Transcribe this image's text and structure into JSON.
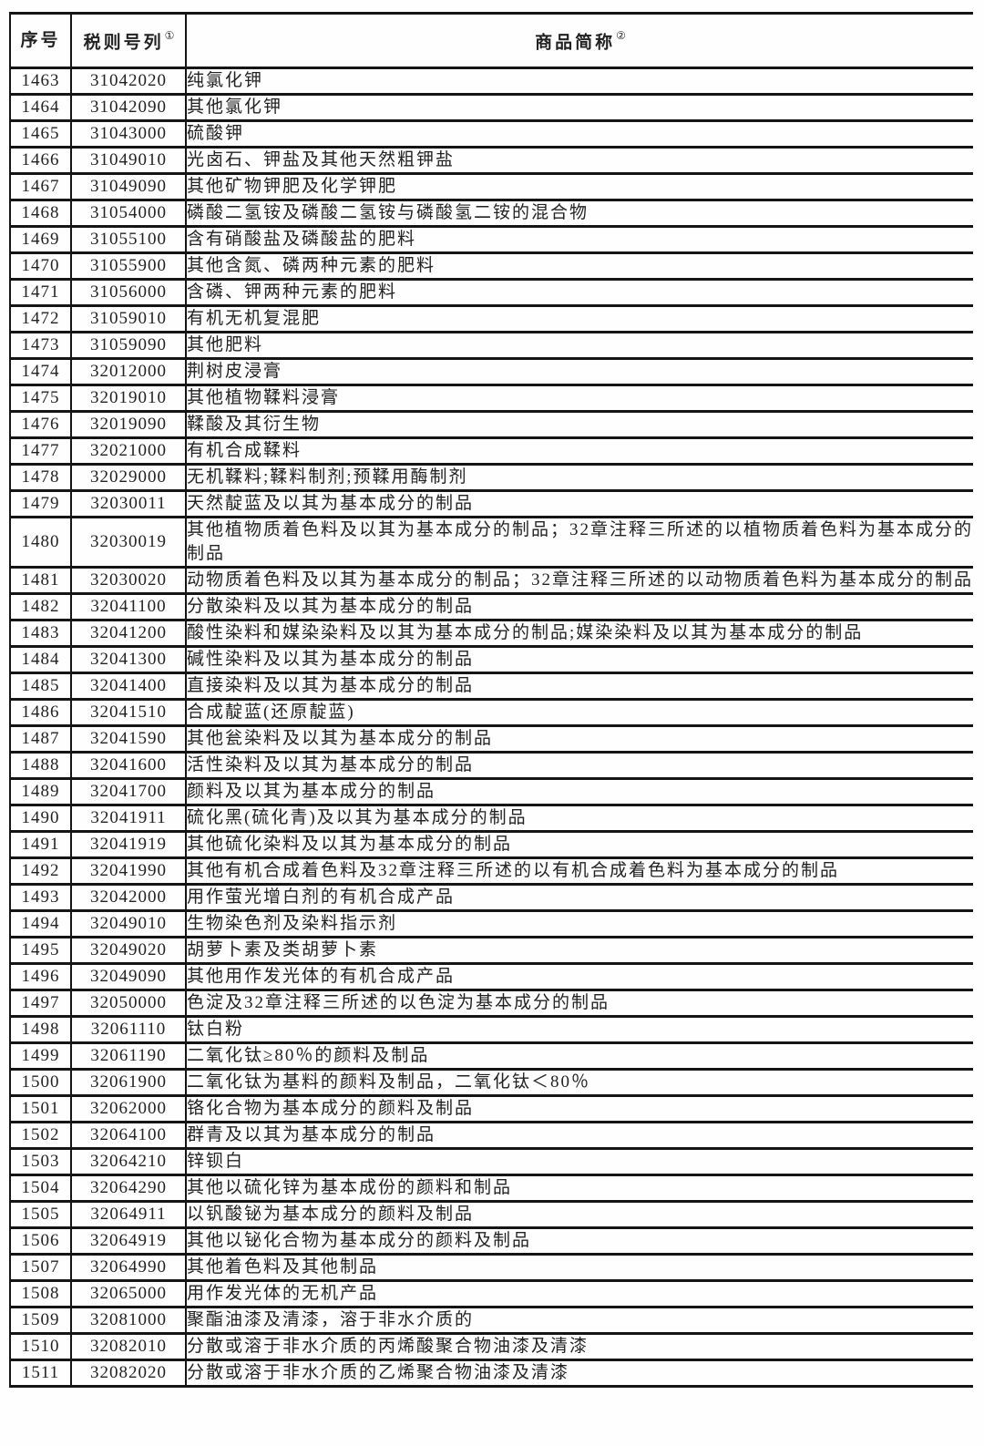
{
  "table": {
    "columns": [
      {
        "label": "序号",
        "sup": ""
      },
      {
        "label": "税则号列",
        "sup": "①"
      },
      {
        "label": "商品简称",
        "sup": "②"
      }
    ],
    "line_color": "#151515",
    "rows": [
      {
        "seq": "1463",
        "code": "31042020",
        "name": "纯氯化钾"
      },
      {
        "seq": "1464",
        "code": "31042090",
        "name": "其他氯化钾"
      },
      {
        "seq": "1465",
        "code": "31043000",
        "name": "硫酸钾"
      },
      {
        "seq": "1466",
        "code": "31049010",
        "name": "光卤石、钾盐及其他天然粗钾盐"
      },
      {
        "seq": "1467",
        "code": "31049090",
        "name": "其他矿物钾肥及化学钾肥"
      },
      {
        "seq": "1468",
        "code": "31054000",
        "name": "磷酸二氢铵及磷酸二氢铵与磷酸氢二铵的混合物"
      },
      {
        "seq": "1469",
        "code": "31055100",
        "name": "含有硝酸盐及磷酸盐的肥料"
      },
      {
        "seq": "1470",
        "code": "31055900",
        "name": "其他含氮、磷两种元素的肥料"
      },
      {
        "seq": "1471",
        "code": "31056000",
        "name": "含磷、钾两种元素的肥料"
      },
      {
        "seq": "1472",
        "code": "31059010",
        "name": "有机无机复混肥"
      },
      {
        "seq": "1473",
        "code": "31059090",
        "name": "其他肥料"
      },
      {
        "seq": "1474",
        "code": "32012000",
        "name": "荆树皮浸膏"
      },
      {
        "seq": "1475",
        "code": "32019010",
        "name": "其他植物鞣料浸膏"
      },
      {
        "seq": "1476",
        "code": "32019090",
        "name": "鞣酸及其衍生物"
      },
      {
        "seq": "1477",
        "code": "32021000",
        "name": "有机合成鞣料"
      },
      {
        "seq": "1478",
        "code": "32029000",
        "name": "无机鞣料;鞣料制剂;预鞣用酶制剂"
      },
      {
        "seq": "1479",
        "code": "32030011",
        "name": "天然靛蓝及以其为基本成分的制品"
      },
      {
        "seq": "1480",
        "code": "32030019",
        "name": "其他植物质着色料及以其为基本成分的制品；32章注释三所述的以植物质着色料为基本成分的制品"
      },
      {
        "seq": "1481",
        "code": "32030020",
        "name": "动物质着色料及以其为基本成分的制品；32章注释三所述的以动物质着色料为基本成分的制品"
      },
      {
        "seq": "1482",
        "code": "32041100",
        "name": "分散染料及以其为基本成分的制品"
      },
      {
        "seq": "1483",
        "code": "32041200",
        "name": "酸性染料和媒染染料及以其为基本成分的制品;媒染染料及以其为基本成分的制品"
      },
      {
        "seq": "1484",
        "code": "32041300",
        "name": "碱性染料及以其为基本成分的制品"
      },
      {
        "seq": "1485",
        "code": "32041400",
        "name": "直接染料及以其为基本成分的制品"
      },
      {
        "seq": "1486",
        "code": "32041510",
        "name": "合成靛蓝(还原靛蓝)"
      },
      {
        "seq": "1487",
        "code": "32041590",
        "name": "其他瓮染料及以其为基本成分的制品"
      },
      {
        "seq": "1488",
        "code": "32041600",
        "name": "活性染料及以其为基本成分的制品"
      },
      {
        "seq": "1489",
        "code": "32041700",
        "name": "颜料及以其为基本成分的制品"
      },
      {
        "seq": "1490",
        "code": "32041911",
        "name": "硫化黑(硫化青)及以其为基本成分的制品"
      },
      {
        "seq": "1491",
        "code": "32041919",
        "name": "其他硫化染料及以其为基本成分的制品"
      },
      {
        "seq": "1492",
        "code": "32041990",
        "name": "其他有机合成着色料及32章注释三所述的以有机合成着色料为基本成分的制品"
      },
      {
        "seq": "1493",
        "code": "32042000",
        "name": "用作萤光增白剂的有机合成产品"
      },
      {
        "seq": "1494",
        "code": "32049010",
        "name": "生物染色剂及染料指示剂"
      },
      {
        "seq": "1495",
        "code": "32049020",
        "name": "胡萝卜素及类胡萝卜素"
      },
      {
        "seq": "1496",
        "code": "32049090",
        "name": "其他用作发光体的有机合成产品"
      },
      {
        "seq": "1497",
        "code": "32050000",
        "name": "色淀及32章注释三所述的以色淀为基本成分的制品"
      },
      {
        "seq": "1498",
        "code": "32061110",
        "name": "钛白粉"
      },
      {
        "seq": "1499",
        "code": "32061190",
        "name": "二氧化钛≥80％的颜料及制品"
      },
      {
        "seq": "1500",
        "code": "32061900",
        "name": "二氧化钛为基料的颜料及制品，二氧化钛＜80％"
      },
      {
        "seq": "1501",
        "code": "32062000",
        "name": "铬化合物为基本成分的颜料及制品"
      },
      {
        "seq": "1502",
        "code": "32064100",
        "name": "群青及以其为基本成分的制品"
      },
      {
        "seq": "1503",
        "code": "32064210",
        "name": "锌钡白"
      },
      {
        "seq": "1504",
        "code": "32064290",
        "name": "其他以硫化锌为基本成份的颜料和制品"
      },
      {
        "seq": "1505",
        "code": "32064911",
        "name": "以钒酸铋为基本成分的颜料及制品"
      },
      {
        "seq": "1506",
        "code": "32064919",
        "name": "其他以铋化合物为基本成分的颜料及制品"
      },
      {
        "seq": "1507",
        "code": "32064990",
        "name": "其他着色料及其他制品"
      },
      {
        "seq": "1508",
        "code": "32065000",
        "name": "用作发光体的无机产品"
      },
      {
        "seq": "1509",
        "code": "32081000",
        "name": "聚酯油漆及清漆，溶于非水介质的"
      },
      {
        "seq": "1510",
        "code": "32082010",
        "name": "分散或溶于非水介质的丙烯酸聚合物油漆及清漆"
      },
      {
        "seq": "1511",
        "code": "32082020",
        "name": "分散或溶于非水介质的乙烯聚合物油漆及清漆"
      }
    ]
  }
}
